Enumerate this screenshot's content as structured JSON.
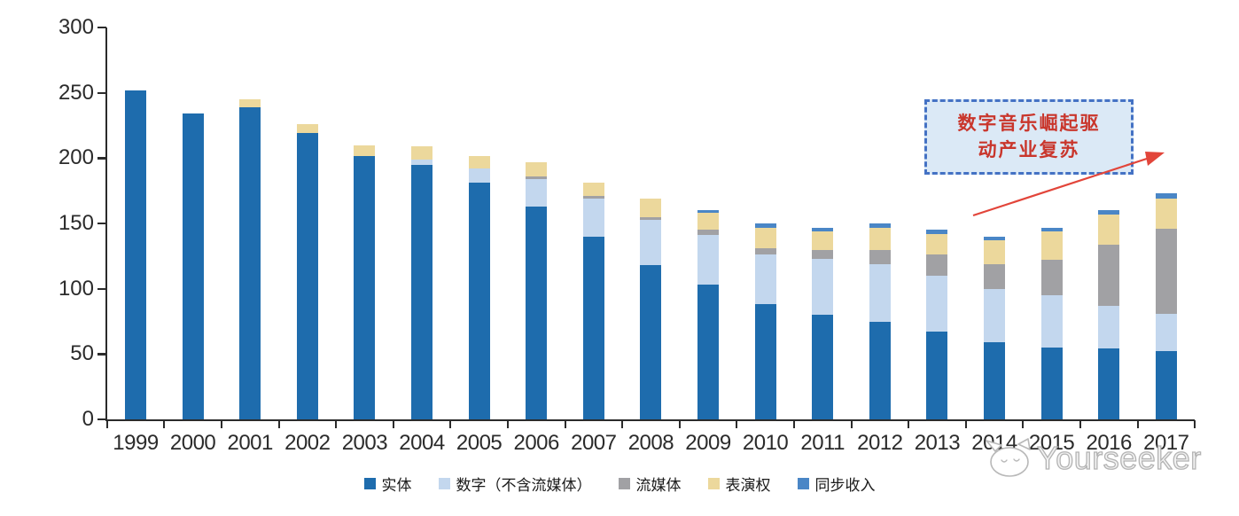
{
  "page": {
    "background": "#ffffff"
  },
  "chart_data": {
    "type": "bar",
    "stacked": true,
    "title": "",
    "xlabel": "",
    "ylabel": "",
    "categories": [
      "1999",
      "2000",
      "2001",
      "2002",
      "2003",
      "2004",
      "2005",
      "2006",
      "2007",
      "2008",
      "2009",
      "2010",
      "2011",
      "2012",
      "2013",
      "2014",
      "2015",
      "2016",
      "2017"
    ],
    "series": [
      {
        "name": "实体",
        "color": "#1e6cad",
        "values": [
          252,
          234,
          239,
          219,
          202,
          195,
          181,
          163,
          140,
          118,
          103,
          88,
          80,
          75,
          67,
          59,
          55,
          54,
          52
        ]
      },
      {
        "name": "数字（不含流媒体）",
        "color": "#c3d7ee",
        "values": [
          0,
          0,
          0,
          0,
          0,
          4,
          11,
          21,
          29,
          35,
          38,
          38,
          43,
          44,
          43,
          41,
          40,
          33,
          29
        ]
      },
      {
        "name": "流媒体",
        "color": "#a1a1a4",
        "values": [
          0,
          0,
          0,
          0,
          0,
          0,
          0,
          2,
          2,
          2,
          4,
          5,
          7,
          11,
          16,
          19,
          27,
          47,
          65
        ]
      },
      {
        "name": "表演权",
        "color": "#ecd89c",
        "values": [
          0,
          0,
          6,
          7,
          8,
          10,
          10,
          11,
          10,
          14,
          13,
          16,
          14,
          17,
          16,
          18,
          22,
          23,
          23
        ]
      },
      {
        "name": "同步收入",
        "color": "#4a86c6",
        "values": [
          0,
          0,
          0,
          0,
          0,
          0,
          0,
          0,
          0,
          0,
          2,
          3,
          3,
          3,
          3,
          3,
          3,
          3,
          4
        ]
      }
    ],
    "ylim": [
      0,
      300
    ],
    "y_ticks": [
      0,
      50,
      100,
      150,
      200,
      250,
      300
    ],
    "grid": false,
    "legend_position": "bottom",
    "axis_color": "#2b2b2b"
  },
  "annotation": {
    "line1": "数字音乐崛起驱",
    "line2": "动产业复苏",
    "text_color": "#c9362c",
    "box_fill": "#dbe9f6",
    "box_border_color": "#4472c4",
    "arrow_color": "#e2453a"
  },
  "watermark": {
    "label": "Yourseeker",
    "color": "#b3b3b3"
  }
}
